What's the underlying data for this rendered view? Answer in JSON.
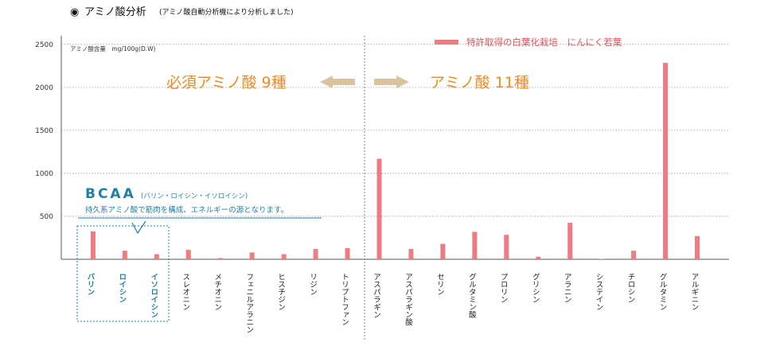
{
  "header": {
    "marker": "◉",
    "title": "アミノ酸分析",
    "subtitle": "(アミノ酸自動分析機により分析しました)"
  },
  "chart_data": {
    "type": "bar",
    "ylabel": "アミノ酸含量　mg/100g(D.W)",
    "ylim": [
      0,
      2600
    ],
    "yticks": [
      500,
      1000,
      1500,
      2000,
      2500
    ],
    "grid": true,
    "legend": {
      "placement": "top-right",
      "label": "特許取得の白葉化栽培　にんにく若葉",
      "color": "#f07b80"
    },
    "categories": [
      "バリン",
      "ロイシン",
      "イソロイシン",
      "スレオニン",
      "メチオニン",
      "フェニルアラニン",
      "ヒスチジン",
      "リジン",
      "トリプトファン",
      "アスパラギン",
      "アスパラギン酸",
      "セリン",
      "グルタミン酸",
      "プロリン",
      "グリシン",
      "アラニン",
      "システイン",
      "チロシン",
      "グルタミン",
      "アルギニン"
    ],
    "values": [
      325,
      100,
      60,
      110,
      15,
      80,
      60,
      120,
      130,
      1170,
      120,
      180,
      320,
      285,
      30,
      425,
      5,
      100,
      2285,
      270
    ],
    "bcaa_categories": [
      "バリン",
      "ロイシン",
      "イソロイシン"
    ],
    "groups": {
      "essential": "必須アミノ酸 9種",
      "nonessential": "アミノ酸 11種"
    },
    "bcaa": {
      "title": "BCAA",
      "subtitle": "(バリン・ロイシン・イソロイシン)",
      "note": "持久系アミノ酸で筋肉を構成、エネルギーの源となります。"
    },
    "colors": {
      "bar": "#f07b80",
      "group_text": "#f08a24",
      "arrow": "#d9c2a0",
      "bcaa": "#1f7fa6",
      "legend_text": "#e8505b"
    }
  }
}
